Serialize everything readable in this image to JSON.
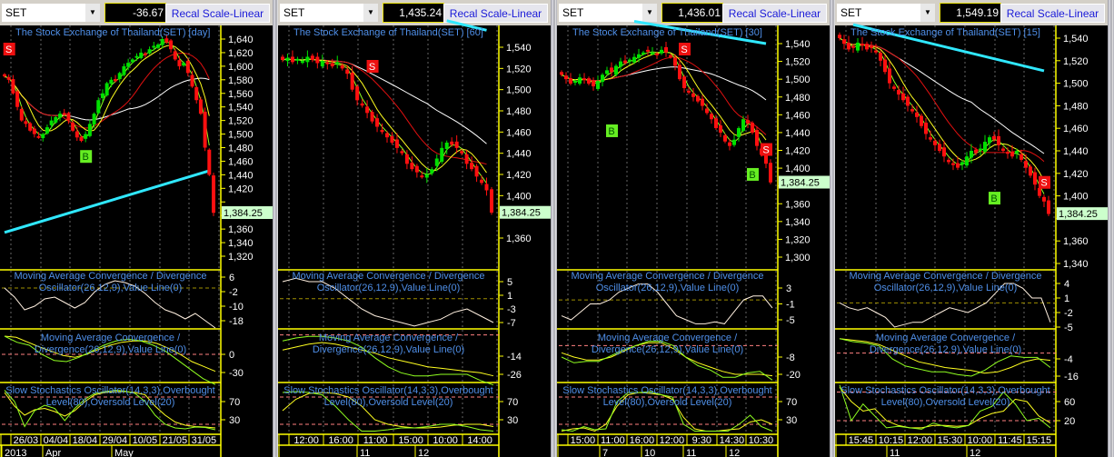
{
  "panels": [
    {
      "symbol": "SET",
      "value": "-36.67",
      "button": "Recal Scale-Linear",
      "title": "The Stock Exchange of Thailand(SET) [day]",
      "last_price": "1,384.25",
      "price_axis": {
        "max": 1640,
        "min": 1320,
        "step": 20
      },
      "closes": [
        1585,
        1580,
        1560,
        1540,
        1520,
        1515,
        1505,
        1500,
        1495,
        1500,
        1510,
        1520,
        1525,
        1530,
        1528,
        1520,
        1505,
        1495,
        1490,
        1500,
        1515,
        1530,
        1550,
        1560,
        1575,
        1580,
        1578,
        1590,
        1600,
        1605,
        1610,
        1615,
        1620,
        1618,
        1625,
        1630,
        1632,
        1640,
        1635,
        1625,
        1610,
        1600,
        1605,
        1590,
        1570,
        1550,
        1530,
        1480,
        1440,
        1384
      ],
      "long_ma": [
        1355,
        1446
      ],
      "long_ma_from_bar": 0,
      "signals": [
        {
          "type": "S",
          "bar": 1,
          "price": 1647
        },
        {
          "type": "B",
          "bar": 19,
          "price": 1467
        }
      ],
      "macd1": {
        "title": "Moving Average Convergence / Divergence Oscillator(26,12,9),Value Line(0)",
        "ticks": [
          "6",
          "-2",
          "-10",
          "-18"
        ],
        "tick_values": [
          6,
          -2,
          -10,
          -18
        ],
        "values": [
          0,
          -5,
          -12,
          -10,
          -6,
          -5,
          -8,
          -11,
          -8,
          -2,
          2,
          4,
          3,
          1,
          -3,
          -8,
          -12,
          -14,
          -17,
          -14,
          -18,
          -22
        ]
      },
      "macd2": {
        "title": "Moving Average Convergence / Divergence(26,12,9),Value Line(0)",
        "ticks": [
          "0",
          "-30"
        ],
        "tick_values": [
          0,
          -30
        ],
        "yellow": [
          30,
          28,
          20,
          12,
          5,
          -2,
          -5,
          0,
          8,
          15,
          20,
          22,
          22,
          18,
          10,
          0,
          -12,
          -20,
          -28
        ],
        "green": [
          30,
          20,
          15,
          0,
          -10,
          -12,
          -5,
          5,
          15,
          22,
          25,
          22,
          15,
          5,
          -10,
          -25,
          -40,
          -50
        ]
      },
      "stoch": {
        "title": "Slow Stochastics Oscillator(14,3,3),Overbought Level(80),Oversold Level(20)",
        "ticks": [
          "70",
          "30"
        ],
        "tick_values": [
          70,
          30
        ],
        "yellow": [
          90,
          60,
          40,
          52,
          55,
          48,
          38,
          50,
          70,
          85,
          90,
          92,
          92,
          90,
          85,
          60,
          40,
          25,
          18,
          15,
          14,
          12
        ],
        "green": [
          95,
          70,
          15,
          50,
          62,
          55,
          28,
          55,
          75,
          88,
          92,
          95,
          93,
          88,
          70,
          40,
          20,
          12,
          10,
          14,
          13,
          8
        ]
      },
      "time_labels": [
        "26/03",
        "04/04",
        "18/04",
        "29/04",
        "10/05",
        "21/05",
        "31/05"
      ],
      "period_labels": [
        "2013",
        "Apr",
        "May"
      ]
    },
    {
      "symbol": "SET",
      "value": "1,435.24",
      "button": "Recal Scale-Linear",
      "title": "The Stock Exchange of Thailand(SET) [60]",
      "last_price": "1,384.25",
      "price_axis": {
        "max": 1540,
        "min": 1360,
        "step": 20
      },
      "closes": [
        1528,
        1530,
        1526,
        1529,
        1527,
        1531,
        1528,
        1525,
        1527,
        1524,
        1522,
        1526,
        1520,
        1515,
        1500,
        1490,
        1485,
        1478,
        1470,
        1465,
        1460,
        1455,
        1450,
        1445,
        1440,
        1430,
        1425,
        1422,
        1418,
        1420,
        1425,
        1435,
        1445,
        1450,
        1448,
        1445,
        1440,
        1430,
        1425,
        1418,
        1412,
        1405,
        1384
      ],
      "long_ma": [
        1565,
        1556
      ],
      "long_ma_from_bar": 33,
      "signals": [
        {
          "type": "S",
          "bar": 18,
          "price": 1522
        }
      ],
      "macd1": {
        "title": "Moving Average Convergence / Divergence Oscillator(26,12,9),Value Line(0)",
        "ticks": [
          "5",
          "1",
          "-3",
          "-7"
        ],
        "tick_values": [
          5,
          1,
          -3,
          -7
        ],
        "values": [
          5,
          6,
          5,
          5,
          3,
          0,
          -3,
          -5,
          -6,
          -7,
          -8,
          -7,
          -6,
          -4,
          -3,
          -5,
          -7
        ]
      },
      "macd2": {
        "title": "Moving Average Convergence / Divergence(26,12,9),Value Line(0)",
        "ticks": [
          "-14",
          "-26"
        ],
        "tick_values": [
          -14,
          -26
        ],
        "yellow": [
          -10,
          -8,
          -6,
          -5,
          -6,
          -8,
          -10,
          -12,
          -15,
          -17,
          -19,
          -21,
          -22,
          -23,
          -24,
          -25,
          -27
        ],
        "green": [
          -4,
          -2,
          -1,
          -1,
          -2,
          -4,
          -8,
          -15,
          -21,
          -25,
          -27,
          -27,
          -26,
          -26,
          -26,
          -30,
          -33
        ]
      },
      "stoch": {
        "title": "Slow Stochastics Oscillator(14,3,3),Overbought Level(80),Oversold Level(20)",
        "ticks": [
          "70",
          "30"
        ],
        "tick_values": [
          70,
          30
        ],
        "yellow": [
          50,
          75,
          88,
          90,
          88,
          80,
          60,
          30,
          20,
          15,
          12,
          12,
          14,
          18,
          20,
          20,
          15
        ],
        "green": [
          90,
          92,
          90,
          85,
          60,
          30,
          5,
          5,
          8,
          12,
          12,
          15,
          20,
          20,
          15,
          8,
          5
        ]
      },
      "time_labels": [
        "12:00",
        "16:00",
        "11:00",
        "15:00",
        "10:00",
        "14:00"
      ],
      "period_labels": [
        "11",
        "12"
      ]
    },
    {
      "symbol": "SET",
      "value": "1,436.01",
      "button": "Recal Scale-Linear",
      "title": "The Stock Exchange of Thailand(SET) [30]",
      "last_price": "1,384.25",
      "price_axis": {
        "max": 1540,
        "min": 1300,
        "step": 20
      },
      "closes": [
        1505,
        1500,
        1495,
        1498,
        1502,
        1500,
        1495,
        1492,
        1498,
        1505,
        1510,
        1508,
        1515,
        1520,
        1518,
        1522,
        1525,
        1528,
        1530,
        1532,
        1530,
        1528,
        1533,
        1530,
        1525,
        1515,
        1500,
        1490,
        1485,
        1480,
        1475,
        1470,
        1462,
        1455,
        1445,
        1440,
        1430,
        1425,
        1432,
        1445,
        1455,
        1450,
        1440,
        1425,
        1415,
        1405,
        1384
      ],
      "long_ma": [
        1565,
        1540
      ],
      "long_ma_from_bar": 16,
      "signals": [
        {
          "type": "B",
          "bar": 11,
          "price": 1442
        },
        {
          "type": "S",
          "bar": 27,
          "price": 1551
        },
        {
          "type": "B",
          "bar": 42,
          "price": 1393
        },
        {
          "type": "S",
          "bar": 45,
          "price": 1421
        }
      ],
      "macd1": {
        "title": "Moving Average Convergence / Divergence Oscillator(26,12,9),Value Line(0)",
        "ticks": [
          "3",
          "-1",
          "-5"
        ],
        "tick_values": [
          3,
          -1,
          -5
        ],
        "values": [
          -4,
          -5,
          -3,
          -1,
          -1,
          0,
          2,
          3,
          4,
          4,
          2,
          -1,
          -4,
          -5,
          -6,
          -6,
          -5.5,
          -6,
          -3,
          0,
          1,
          1,
          -2
        ]
      },
      "macd2": {
        "title": "Moving Average Convergence / Divergence(26,12,9),Value Line(0)",
        "ticks": [
          "-8",
          "-20"
        ],
        "tick_values": [
          -8,
          -20
        ],
        "yellow": [
          -5,
          -8,
          -10,
          -10,
          -8,
          -4,
          0,
          2,
          2,
          -2,
          -8,
          -12,
          -15,
          -18,
          -20,
          -20,
          -20,
          -21
        ],
        "green": [
          -8,
          -12,
          -11,
          -11,
          -7,
          -3,
          0,
          3,
          3,
          0,
          -8,
          -14,
          -17,
          -22,
          -22,
          -19,
          -18,
          -24
        ]
      },
      "stoch": {
        "title": "Slow Stochastics Oscillator(14,3,3),Overbought Level(80),Oversold Level(20)",
        "ticks": [
          "70",
          "30"
        ],
        "tick_values": [
          70,
          30
        ],
        "yellow": [
          5,
          10,
          12,
          5,
          20,
          60,
          85,
          90,
          88,
          85,
          75,
          35,
          10,
          5,
          5,
          8,
          10,
          25,
          30,
          20
        ],
        "green": [
          8,
          5,
          15,
          8,
          10,
          70,
          90,
          90,
          92,
          85,
          80,
          20,
          5,
          5,
          5,
          5,
          20,
          40,
          15,
          5
        ]
      },
      "time_labels": [
        "15:00",
        "11:00",
        "16:00",
        "12:00",
        "9:30",
        "14:30",
        "10:30"
      ],
      "period_labels": [
        "7",
        "10",
        "11",
        "12"
      ]
    },
    {
      "symbol": "SET",
      "value": "1,549.19",
      "button": "Recal Scale-Linear",
      "title": "The Stock Exchange of Thailand(SET) [15]",
      "last_price": "1,384.25",
      "price_axis": {
        "max": 1540,
        "min": 1340,
        "step": 20
      },
      "closes": [
        1540,
        1535,
        1530,
        1532,
        1536,
        1534,
        1530,
        1532,
        1528,
        1520,
        1510,
        1500,
        1495,
        1490,
        1485,
        1480,
        1475,
        1470,
        1462,
        1455,
        1450,
        1445,
        1440,
        1435,
        1430,
        1428,
        1425,
        1430,
        1435,
        1440,
        1438,
        1442,
        1448,
        1452,
        1450,
        1445,
        1440,
        1438,
        1435,
        1440,
        1432,
        1425,
        1418,
        1410,
        1400,
        1395,
        1384
      ],
      "long_ma": [
        1552,
        1511
      ],
      "long_ma_from_bar": 3,
      "signals": [
        {
          "type": "B",
          "bar": 34,
          "price": 1398
        },
        {
          "type": "S",
          "bar": 45,
          "price": 1412
        }
      ],
      "macd1": {
        "title": "Moving Average Convergence / Divergence Oscillator(26,12,9),Value Line(0)",
        "ticks": [
          "4",
          "1",
          "-2",
          "-5"
        ],
        "tick_values": [
          4,
          1,
          -2,
          -5
        ],
        "values": [
          0,
          -1,
          -1.5,
          -1,
          -2,
          -3,
          -5,
          -4.5,
          -4,
          -4,
          -3,
          -2,
          -1,
          -1.5,
          -2,
          -1,
          0,
          2,
          4,
          4,
          3,
          1,
          1,
          -4
        ]
      },
      "macd2": {
        "title": "Moving Average Convergence / Divergence(26,12,9),Value Line(0)",
        "ticks": [
          "-4",
          "-16"
        ],
        "tick_values": [
          -4,
          -16
        ],
        "yellow": [
          10,
          9,
          8,
          6,
          2,
          -2,
          -6,
          -8,
          -10,
          -11,
          -12,
          -14,
          -13,
          -10,
          -6,
          -4,
          -5
        ],
        "green": [
          10,
          8,
          7,
          5,
          -4,
          -9,
          -11,
          -13,
          -13,
          -15,
          -16,
          -12,
          -6,
          -2,
          -3,
          -3,
          -10
        ]
      },
      "stoch": {
        "title": "Slow Stochastics Oscillator(14,3,3),Overbought Level(80),Oversold Level(20)",
        "ticks": [
          "60",
          "20"
        ],
        "tick_values": [
          60,
          20
        ],
        "yellow": [
          90,
          60,
          40,
          45,
          20,
          10,
          5,
          5,
          10,
          10,
          8,
          10,
          25,
          35,
          40,
          65,
          60,
          30,
          15
        ],
        "green": [
          95,
          20,
          55,
          30,
          5,
          8,
          5,
          2,
          15,
          8,
          5,
          10,
          40,
          50,
          80,
          55,
          20,
          25,
          5
        ]
      },
      "time_labels": [
        "15:45",
        "10:15",
        "12:00",
        "15:30",
        "10:00",
        "11:45",
        "15:15"
      ],
      "period_labels": [
        "11",
        "12"
      ]
    }
  ],
  "colors": {
    "up": "#00e000",
    "down": "#ff1010",
    "ma_fast": "#90ff20",
    "ma_mid": "#ffff20",
    "ma_slow": "#e01010",
    "ma_long": "#ffffff",
    "long_trend": "#30e8ff",
    "axis": "#ffff00",
    "text_blue": "#4f8fe8",
    "last_price_bg": "#ccffcc"
  }
}
